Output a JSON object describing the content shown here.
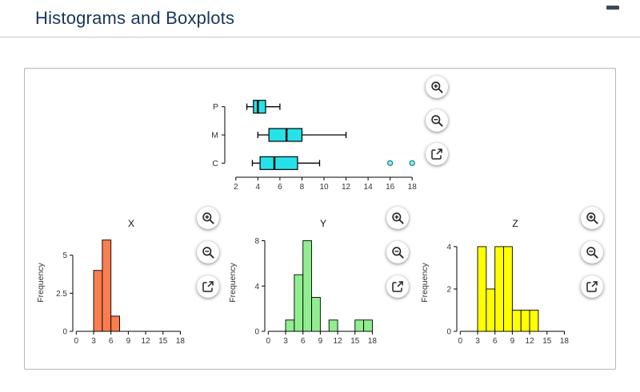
{
  "header": {
    "title": "Histograms and Boxplots"
  },
  "window": {
    "control_icon": "minimize-bar-icon"
  },
  "controls": {
    "zoom_in": {
      "icon": "magnifier-plus-icon",
      "label": "Zoom in"
    },
    "zoom_out": {
      "icon": "magnifier-minus-icon",
      "label": "Zoom out"
    },
    "export": {
      "icon": "open-external-icon",
      "label": "Open in new window"
    }
  },
  "chart_data": [
    {
      "id": "boxplot",
      "type": "boxplot",
      "orientation": "horizontal",
      "title": "",
      "categories": [
        "P",
        "M",
        "C"
      ],
      "series": [
        {
          "name": "P",
          "whisker_low": 3,
          "q1": 3.6,
          "median": 4,
          "q3": 4.7,
          "whisker_high": 6,
          "outliers": []
        },
        {
          "name": "M",
          "whisker_low": 4,
          "q1": 5,
          "median": 6.6,
          "q3": 8,
          "whisker_high": 12,
          "outliers": []
        },
        {
          "name": "C",
          "whisker_low": 3.5,
          "q1": 4.2,
          "median": 5.5,
          "q3": 7.6,
          "whisker_high": 9.6,
          "outliers": [
            16,
            18
          ]
        }
      ],
      "xticks": [
        2,
        4,
        6,
        8,
        10,
        12,
        14,
        16,
        18
      ],
      "xlim": [
        1,
        19
      ],
      "box_fill": "#25e2e8",
      "outlier_fill": "#9ceef0",
      "outlier_stroke": "#0d8a91"
    },
    {
      "id": "hist_x",
      "type": "histogram",
      "title": "X",
      "ylabel": "Frequency",
      "bin_start": 3,
      "bin_width": 1.5,
      "counts": [
        4,
        6,
        1
      ],
      "xticks": [
        0,
        3,
        6,
        9,
        12,
        15,
        18
      ],
      "xlim": [
        -0.6,
        19.6
      ],
      "yticks": [
        0,
        2.5,
        5
      ],
      "ylim": [
        0,
        6.4
      ],
      "bar_fill": "#fa7d50"
    },
    {
      "id": "hist_y",
      "type": "histogram",
      "title": "Y",
      "ylabel": "Frequency",
      "bin_start": 3,
      "bin_width": 1.5,
      "counts": [
        1,
        5,
        8,
        3,
        0,
        1,
        0,
        0,
        1,
        1
      ],
      "xticks": [
        0,
        3,
        6,
        9,
        12,
        15,
        18
      ],
      "xlim": [
        -0.6,
        19.6
      ],
      "yticks": [
        0,
        4,
        8
      ],
      "ylim": [
        0,
        8.6
      ],
      "bar_fill": "#90ee90"
    },
    {
      "id": "hist_z",
      "type": "histogram",
      "title": "Z",
      "ylabel": "Frequency",
      "bin_start": 3,
      "bin_width": 1.5,
      "counts": [
        4,
        2,
        4,
        4,
        1,
        1,
        1
      ],
      "xticks": [
        0,
        3,
        6,
        9,
        12,
        15,
        18
      ],
      "xlim": [
        -0.6,
        19.6
      ],
      "yticks": [
        0,
        2,
        4
      ],
      "ylim": [
        0,
        4.6
      ],
      "bar_fill": "#ffff00"
    }
  ]
}
